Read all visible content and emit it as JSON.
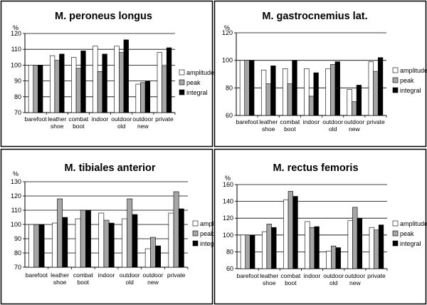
{
  "colors": {
    "amplitude": "#ffffff",
    "peak": "#a6a6a6",
    "integral": "#000000",
    "border": "#000000"
  },
  "chart_data": [
    {
      "type": "bar",
      "title": "M. peroneus longus",
      "ylabel": "%",
      "ylim": [
        70,
        120
      ],
      "yticks": [
        70,
        80,
        90,
        100,
        110,
        120
      ],
      "categories": [
        [
          "barefoot"
        ],
        [
          "leather",
          "shoe"
        ],
        [
          "combat",
          "boot"
        ],
        [
          "indoor"
        ],
        [
          "outdoor",
          "old"
        ],
        [
          "outdoor",
          "new"
        ],
        [
          "private"
        ]
      ],
      "series": [
        {
          "name": "amplitude",
          "values": [
            100,
            106,
            105,
            112,
            112,
            88,
            108
          ]
        },
        {
          "name": "peak",
          "values": [
            100,
            103,
            98,
            96,
            108,
            89,
            99
          ]
        },
        {
          "name": "integral",
          "values": [
            100,
            107,
            109,
            107,
            116,
            90,
            111
          ]
        }
      ],
      "legend": "right",
      "grid": true
    },
    {
      "type": "bar",
      "title": "M. gastrocnemius lat.",
      "ylabel": "%",
      "ylim": [
        60,
        120
      ],
      "yticks": [
        60,
        80,
        100,
        120
      ],
      "categories": [
        [
          "barefoot"
        ],
        [
          "leather",
          "shoe"
        ],
        [
          "combat",
          "boot"
        ],
        [
          "indoor"
        ],
        [
          "outdoor",
          "old"
        ],
        [
          "outdoor",
          "new"
        ],
        [
          "private"
        ]
      ],
      "series": [
        {
          "name": "amplitude",
          "values": [
            100,
            93,
            94,
            94,
            94,
            79,
            99
          ]
        },
        {
          "name": "peak",
          "values": [
            100,
            83,
            83,
            74,
            97,
            70,
            92
          ]
        },
        {
          "name": "integral",
          "values": [
            100,
            96,
            100,
            91,
            99,
            82,
            102
          ]
        }
      ],
      "legend": "right",
      "grid": true
    },
    {
      "type": "bar",
      "title": "M. tibiales anterior",
      "ylabel": "%",
      "ylim": [
        70,
        130
      ],
      "yticks": [
        70,
        80,
        90,
        100,
        110,
        120,
        130
      ],
      "categories": [
        [
          "barefoot"
        ],
        [
          "leather",
          "shoe"
        ],
        [
          "combat",
          "boot"
        ],
        [
          "indoor"
        ],
        [
          "outdoor",
          "old"
        ],
        [
          "outdoor",
          "new"
        ],
        [
          "private"
        ]
      ],
      "series": [
        {
          "name": "amplitude",
          "values": [
            100,
            101,
            104,
            108,
            104,
            83,
            108
          ]
        },
        {
          "name": "peak",
          "values": [
            100,
            118,
            110,
            103,
            118,
            91,
            123
          ]
        },
        {
          "name": "integral",
          "values": [
            100,
            105,
            110,
            101,
            107,
            85,
            111
          ]
        }
      ],
      "legend": "right",
      "grid": true
    },
    {
      "type": "bar",
      "title": "M. rectus femoris",
      "ylabel": "%",
      "ylim": [
        60,
        160
      ],
      "yticks": [
        60,
        80,
        100,
        120,
        140,
        160
      ],
      "categories": [
        [
          "barefoot"
        ],
        [
          "leather",
          "shoe"
        ],
        [
          "combat",
          "boot"
        ],
        [
          "indoor"
        ],
        [
          "outdoor",
          "old"
        ],
        [
          "outdoor",
          "new"
        ],
        [
          "private"
        ]
      ],
      "series": [
        {
          "name": "amplitude",
          "values": [
            100,
            104,
            142,
            116,
            81,
            117,
            109
          ]
        },
        {
          "name": "peak",
          "values": [
            100,
            113,
            152,
            109,
            87,
            133,
            106
          ]
        },
        {
          "name": "integral",
          "values": [
            100,
            109,
            146,
            110,
            85,
            120,
            112
          ]
        }
      ],
      "legend": "right",
      "grid": true
    }
  ]
}
